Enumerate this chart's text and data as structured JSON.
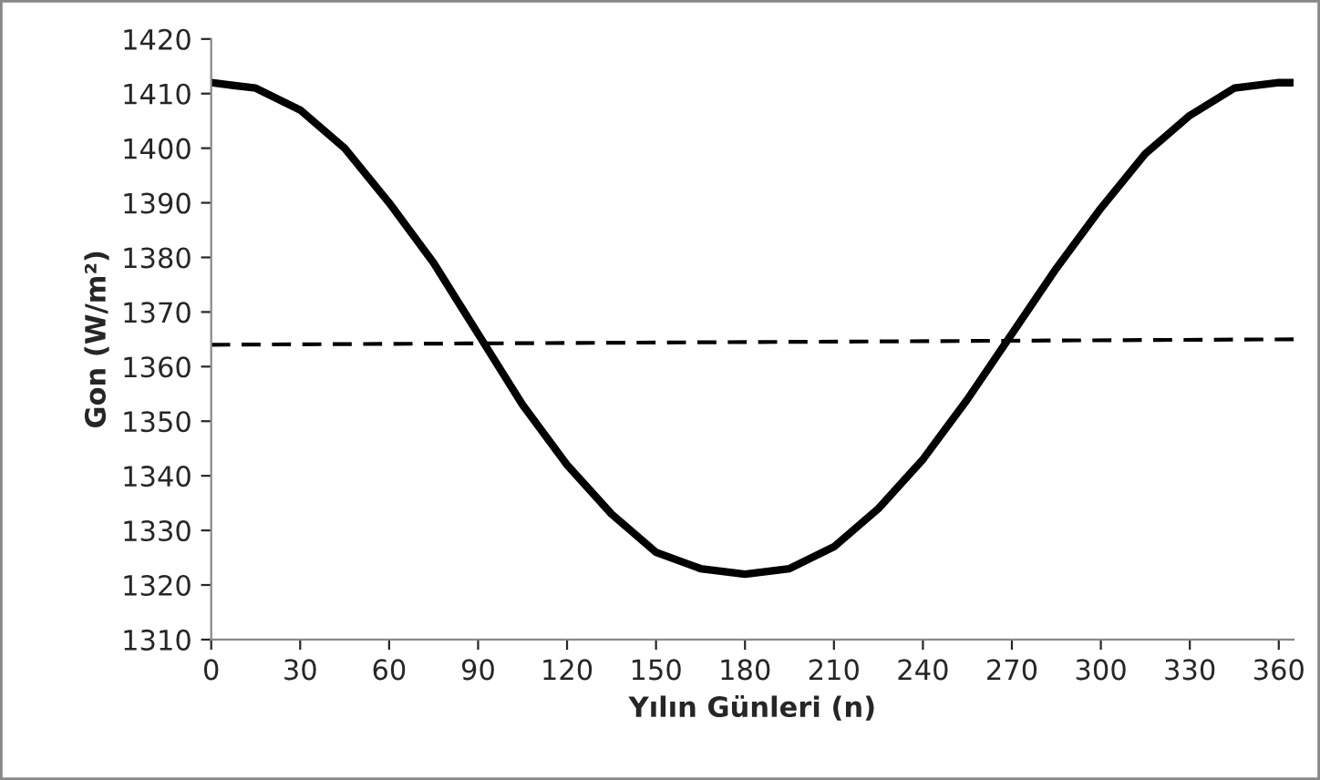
{
  "chart_data": {
    "type": "line",
    "xlabel": "Yılın Günleri (n)",
    "ylabel": "Gon (W/m²)",
    "xlim": [
      0,
      365
    ],
    "ylim": [
      1310,
      1420
    ],
    "xticks": [
      0,
      30,
      60,
      90,
      120,
      150,
      180,
      210,
      240,
      270,
      300,
      330,
      360
    ],
    "yticks": [
      1310,
      1320,
      1330,
      1340,
      1350,
      1360,
      1370,
      1380,
      1390,
      1400,
      1410,
      1420
    ],
    "grid": false,
    "legend": false,
    "marker": "none",
    "series": [
      {
        "color": "#000000",
        "line_style": "solid",
        "x": [
          0,
          15,
          30,
          45,
          60,
          75,
          90,
          105,
          120,
          135,
          150,
          165,
          180,
          195,
          210,
          225,
          240,
          255,
          270,
          285,
          300,
          315,
          330,
          345,
          360,
          365
        ],
        "values": [
          1412,
          1411,
          1407,
          1400,
          1390,
          1379,
          1366,
          1353,
          1342,
          1333,
          1326,
          1323,
          1322,
          1323,
          1327,
          1334,
          1343,
          1354,
          1366,
          1378,
          1389,
          1399,
          1406,
          1411,
          1412,
          1412
        ]
      },
      {
        "color": "#000000",
        "line_style": "dashed",
        "x": [
          0,
          365
        ],
        "values": [
          1364,
          1365
        ]
      }
    ]
  }
}
